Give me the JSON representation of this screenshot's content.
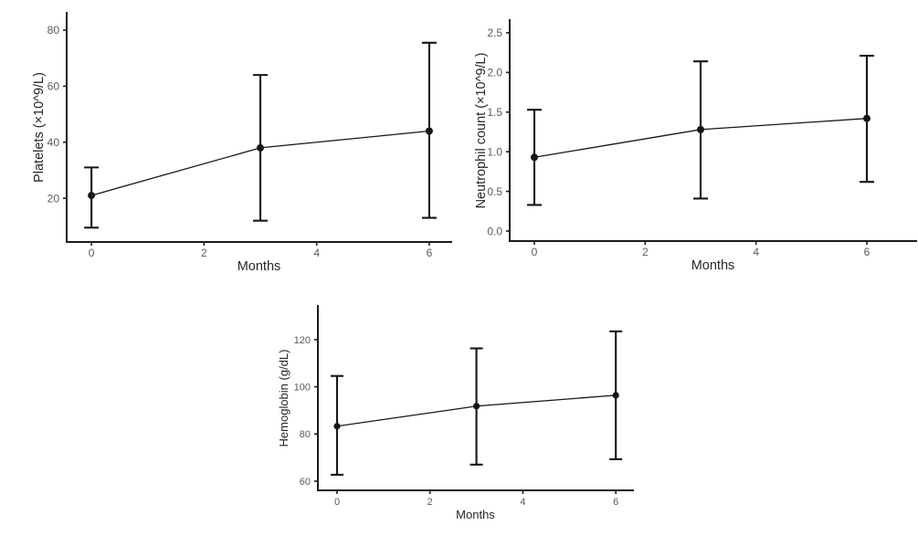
{
  "figure": {
    "background": "#ffffff"
  },
  "style": {
    "data_color": "#161616",
    "axis_color": "#1b1b1b",
    "tick_label_color": "#565b63",
    "axis_title_color": "#23262c"
  },
  "chart_data": [
    {
      "id": "platelets",
      "type": "line",
      "title": "",
      "xlabel": "Months",
      "ylabel": "Platelets (×10^9/L)",
      "x": [
        0,
        3,
        6
      ],
      "series": [
        {
          "name": "mean",
          "values": [
            21,
            38,
            44
          ]
        }
      ],
      "error_low": [
        9.5,
        12,
        13
      ],
      "error_high": [
        31,
        64,
        75.5
      ],
      "xticks": [
        0,
        2,
        4,
        6
      ],
      "xtick_labels": [
        "0",
        "2",
        "4",
        "6"
      ],
      "yticks": [
        20,
        40,
        60,
        80
      ],
      "ytick_labels": [
        "20",
        "40",
        "60",
        "80"
      ],
      "xlim": [
        -0.44,
        6.39
      ],
      "ylim": [
        4.4,
        86.2
      ],
      "grid": false,
      "legend": "none"
    },
    {
      "id": "neutrophils",
      "type": "line",
      "title": "",
      "xlabel": "Months",
      "ylabel": "Neutrophil count (×10^9/L)",
      "x": [
        0,
        3,
        6
      ],
      "series": [
        {
          "name": "mean",
          "values": [
            0.93,
            1.28,
            1.42
          ]
        }
      ],
      "error_low": [
        0.33,
        0.41,
        0.62
      ],
      "error_high": [
        1.53,
        2.14,
        2.21
      ],
      "xticks": [
        0,
        2,
        4,
        6
      ],
      "xtick_labels": [
        "0",
        "2",
        "4",
        "6"
      ],
      "yticks": [
        0.0,
        0.5,
        1.0,
        1.5,
        2.0,
        2.5
      ],
      "ytick_labels": [
        "0.0",
        "0.5",
        "1.0",
        "1.5",
        "2.0",
        "2.5"
      ],
      "xlim": [
        -0.445,
        6.89
      ],
      "ylim": [
        -0.126,
        2.66
      ],
      "grid": false,
      "legend": "none"
    },
    {
      "id": "hemoglobin",
      "type": "line",
      "title": "",
      "xlabel": "Months",
      "ylabel": "Hemoglobin (g/dL)",
      "x": [
        0,
        3,
        6
      ],
      "series": [
        {
          "name": "mean",
          "values": [
            83.3,
            91.8,
            96.4
          ]
        }
      ],
      "error_low": [
        62.7,
        67,
        69.3
      ],
      "error_high": [
        104.6,
        116.3,
        123.5
      ],
      "xticks": [
        0,
        2,
        4,
        6
      ],
      "xtick_labels": [
        "0",
        "2",
        "4",
        "6"
      ],
      "yticks": [
        60,
        80,
        100,
        120
      ],
      "ytick_labels": [
        "60",
        "80",
        "100",
        "120"
      ],
      "xlim": [
        -0.413,
        6.37
      ],
      "ylim": [
        56.1,
        134.3
      ],
      "grid": false,
      "legend": "none"
    }
  ]
}
